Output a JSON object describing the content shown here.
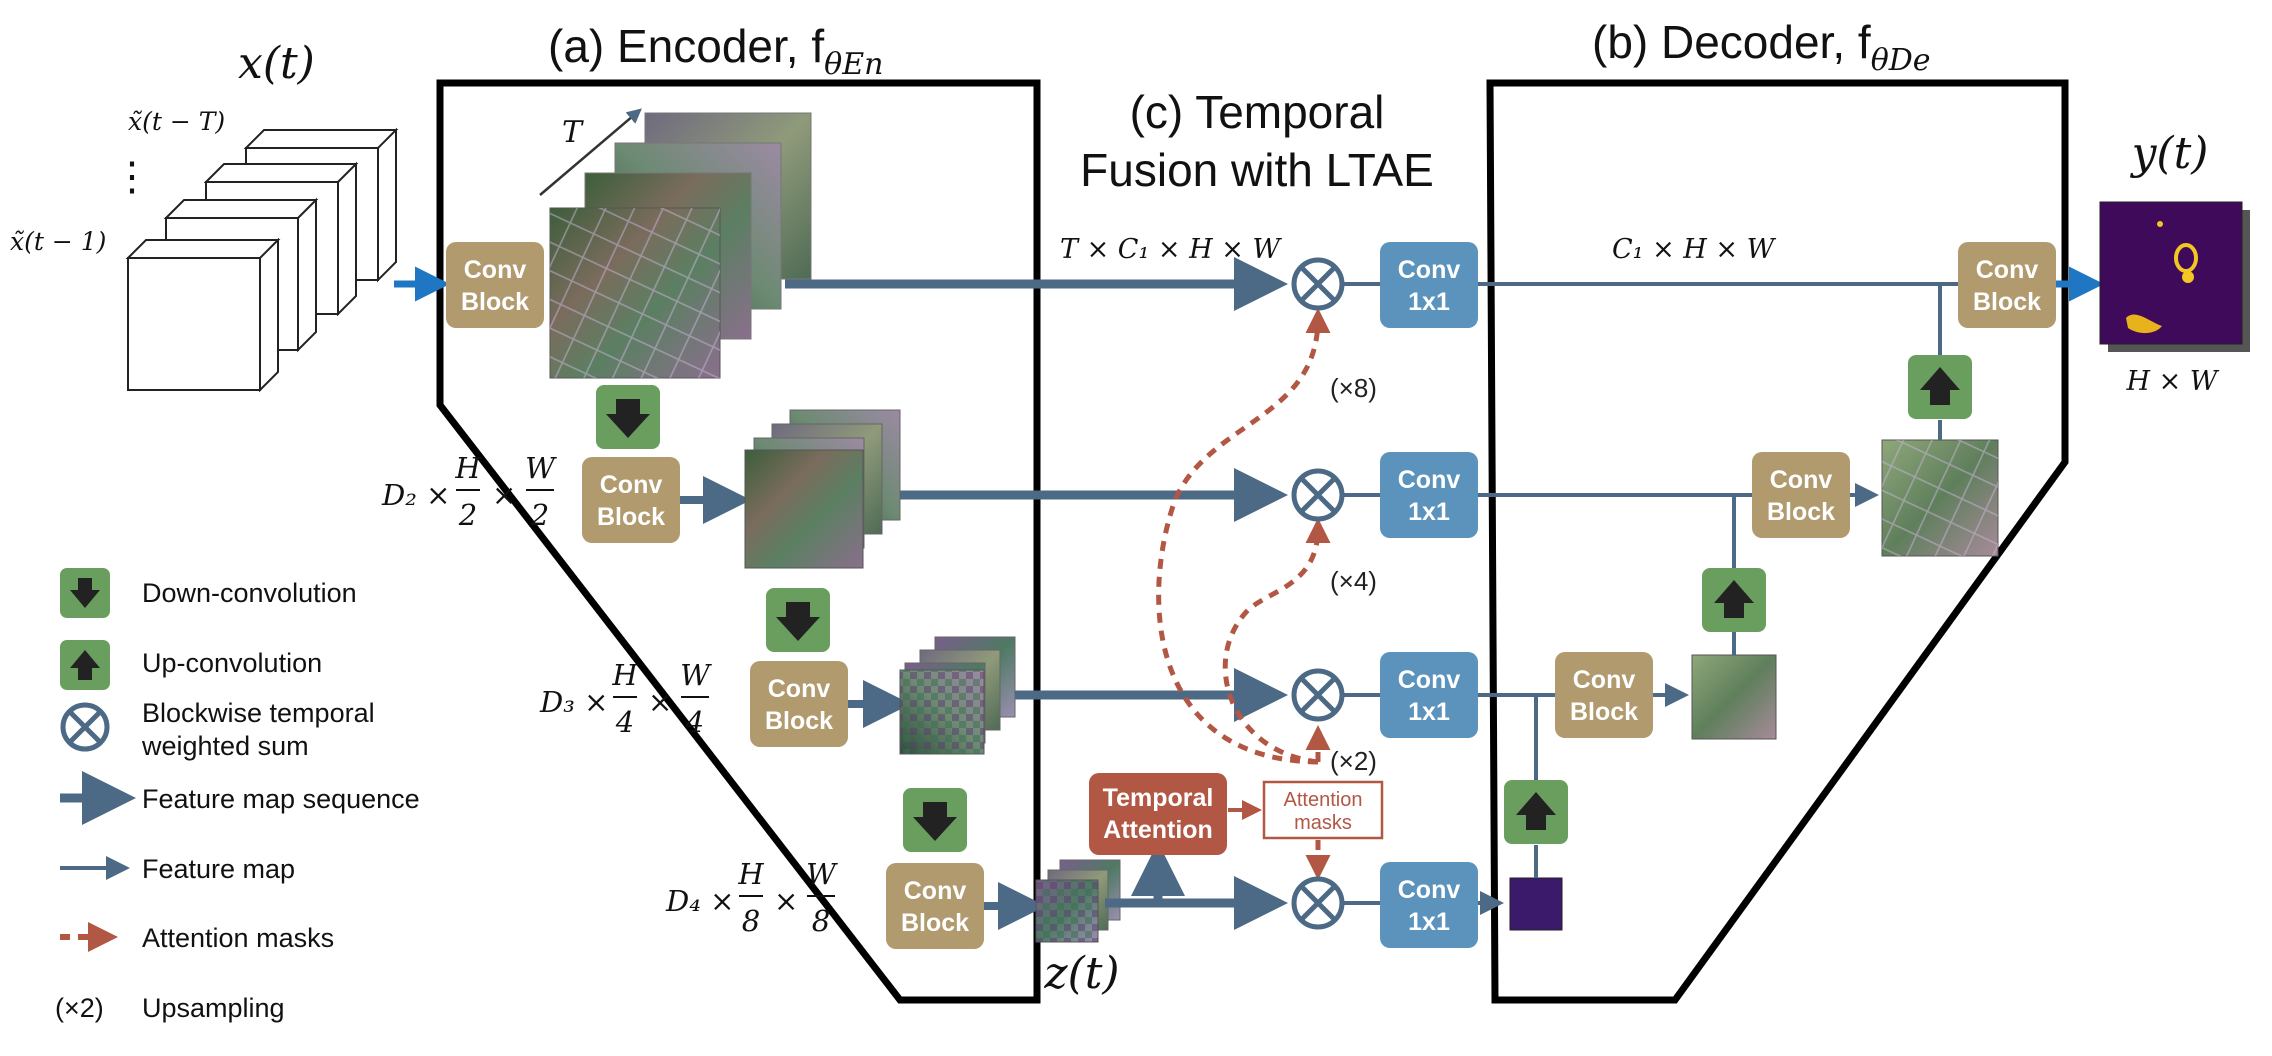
{
  "titles": {
    "encoder": "(a) Encoder, f",
    "encoder_sub": "θEn",
    "decoder": "(b) Decoder, f",
    "decoder_sub": "θDe",
    "fusion_line1": "(c) Temporal",
    "fusion_line2": "Fusion with LTAE"
  },
  "inputs": {
    "x_t": "x(t)",
    "x_t_minus_T": "x̃(t − T)",
    "x_t_minus_1": "x̃(t − 1)",
    "dots": "⋮",
    "T_label": "T"
  },
  "outputs": {
    "y_t": "y(t)",
    "hw": "H × W",
    "z_t": "z(t)"
  },
  "dims": {
    "level1_seq": "T × C₁ × H × W",
    "level1_out": "C₁ × H × W",
    "d2": "D₂ ×",
    "d3": "D₃ ×",
    "d4": "D₄ ×",
    "H": "H",
    "W": "W",
    "den2": "2",
    "den4": "4",
    "den8": "8",
    "times": "×"
  },
  "blocks": {
    "conv_block_line1": "Conv",
    "conv_block_line2": "Block",
    "conv1x1_line1": "Conv",
    "conv1x1_line2": "1x1",
    "temporal_attention_line1": "Temporal",
    "temporal_attention_line2": "Attention",
    "attention_masks_line1": "Attention",
    "attention_masks_line2": "masks"
  },
  "upsampling": {
    "x8": "(×8)",
    "x4": "(×4)",
    "x2": "(×2)"
  },
  "legend": {
    "down_conv": "Down-convolution",
    "up_conv": "Up-convolution",
    "weighted_sum_line1": "Blockwise temporal",
    "weighted_sum_line2": "weighted sum",
    "feature_seq": "Feature map sequence",
    "feature_map": "Feature map",
    "attention_masks": "Attention masks",
    "upsampling_symbol": "(×2)",
    "upsampling_label": "Upsampling"
  },
  "colors": {
    "conv_block": "#b09a6e",
    "conv1x1": "#5b93bd",
    "green": "#6a9e5f",
    "arrow": "#4c6a85",
    "attention": "#b35745",
    "input_arrow": "#1f77c4"
  }
}
